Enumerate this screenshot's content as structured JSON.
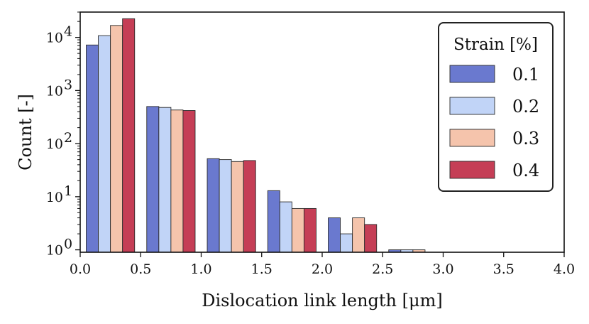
{
  "chart_data": {
    "type": "bar",
    "title": "",
    "xlabel": "Dislocation link length [μm]",
    "ylabel": "Count [-]",
    "yscale": "log",
    "xlim": [
      0.0,
      4.0
    ],
    "ylim": [
      0.9,
      30000
    ],
    "x_ticks": [
      0.0,
      0.5,
      1.0,
      1.5,
      2.0,
      2.5,
      3.0,
      3.5,
      4.0
    ],
    "x_tick_labels": [
      "0.0",
      "0.5",
      "1.0",
      "1.5",
      "2.0",
      "2.5",
      "3.0",
      "3.5",
      "4.0"
    ],
    "y_ticks": [
      {
        "value": 1,
        "base": "10",
        "exp": "0"
      },
      {
        "value": 10,
        "base": "10",
        "exp": "1"
      },
      {
        "value": 100,
        "base": "10",
        "exp": "2"
      },
      {
        "value": 1000,
        "base": "10",
        "exp": "3"
      },
      {
        "value": 10000,
        "base": "10",
        "exp": "4"
      }
    ],
    "bin_edges": [
      0.05,
      0.55,
      1.05,
      1.55,
      2.05,
      2.55
    ],
    "group_width": 0.4,
    "series": [
      {
        "name": "0.1",
        "color": "#6a79cf",
        "values": [
          7200,
          500,
          52,
          13,
          4,
          1
        ]
      },
      {
        "name": "0.2",
        "color": "#c1d4f7",
        "values": [
          10800,
          480,
          50,
          8,
          2,
          1
        ]
      },
      {
        "name": "0.3",
        "color": "#f5c4ac",
        "values": [
          16800,
          430,
          46,
          6,
          4,
          1
        ]
      },
      {
        "name": "0.4",
        "color": "#c53e56",
        "values": [
          22500,
          420,
          48,
          6,
          3,
          null
        ]
      }
    ],
    "legend": {
      "title": "Strain [%]",
      "placement": "top-right"
    },
    "grid": false
  }
}
